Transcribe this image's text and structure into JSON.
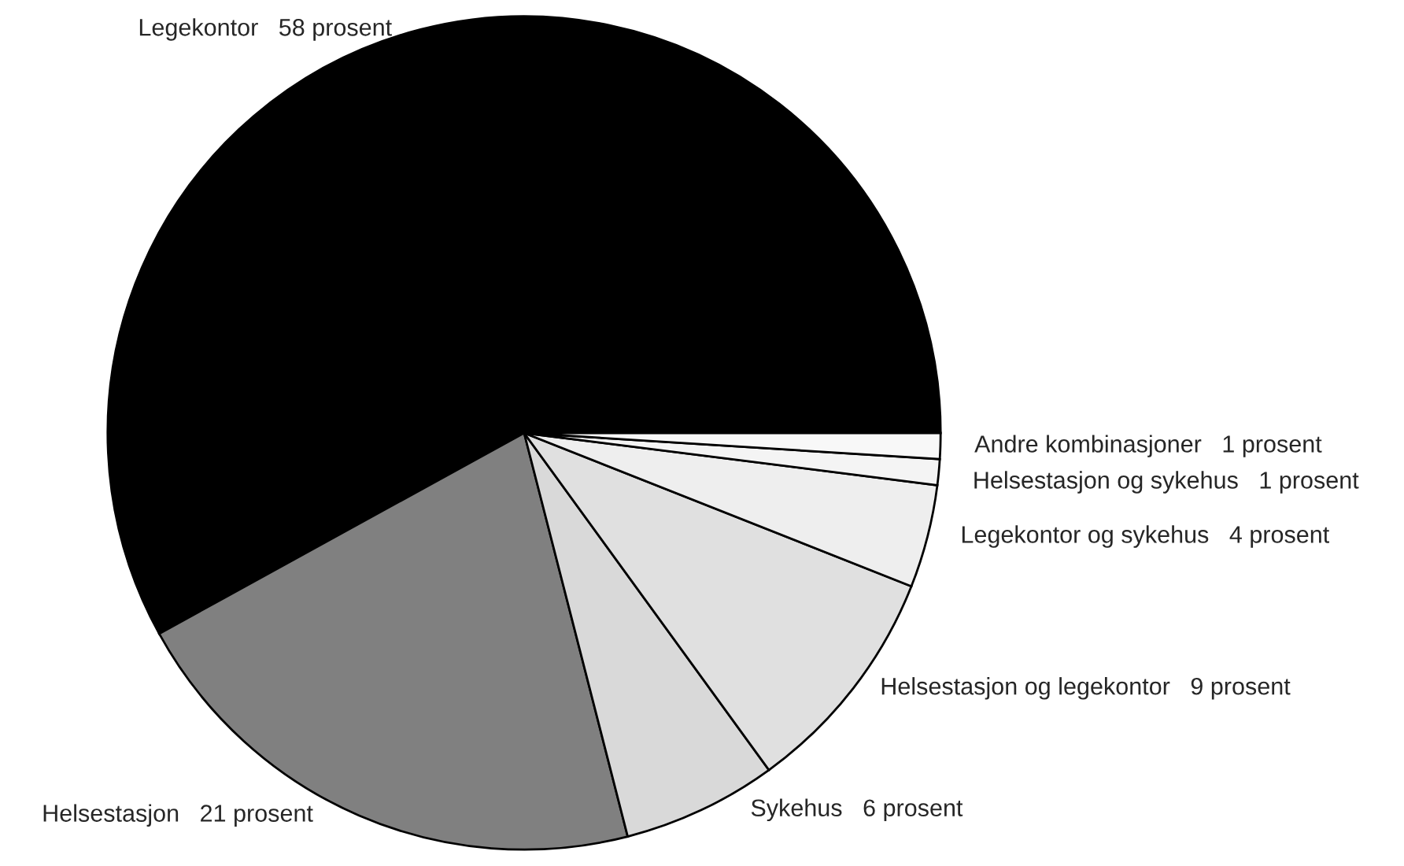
{
  "chart_data": {
    "type": "pie",
    "categories": [
      "Legekontor",
      "Helsestasjon",
      "Sykehus",
      "Helsestasjon og legekontor",
      "Legekontor og sykehus",
      "Helsestasjon og sykehus",
      "Andre kombinasjoner"
    ],
    "values": [
      58,
      21,
      6,
      9,
      4,
      1,
      1
    ],
    "value_labels": [
      "58 prosent",
      "21 prosent",
      "6 prosent",
      "9 prosent",
      "4 prosent",
      "1 prosent",
      "1 prosent"
    ],
    "colors": [
      "#000000",
      "#808080",
      "#d9d9d9",
      "#e0e0e0",
      "#eeeeee",
      "#f4f4f4",
      "#f8f8f8"
    ]
  }
}
